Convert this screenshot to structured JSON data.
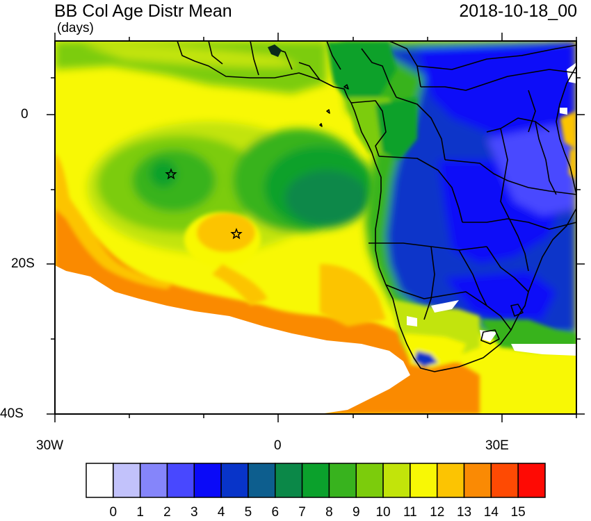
{
  "map": {
    "title": "BB Col Age Distr Mean",
    "units": "(days)",
    "timestamp": "2018-10-18_00",
    "region": "Southern Africa and South Atlantic",
    "lat_range": [
      -40,
      10
    ],
    "lon_range": [
      -30,
      40
    ],
    "x_axis": {
      "ticks": [
        {
          "value": -30,
          "label": "30W"
        },
        {
          "value": 0,
          "label": "0"
        },
        {
          "value": 30,
          "label": "30E"
        }
      ]
    },
    "y_axis": {
      "ticks": [
        {
          "value": 0,
          "label": "0"
        },
        {
          "value": -20,
          "label": "20S"
        },
        {
          "value": -40,
          "label": "40S"
        }
      ]
    },
    "markers": [
      {
        "type": "star",
        "lon": -14.5,
        "lat": -8
      },
      {
        "type": "star",
        "lon": -5.7,
        "lat": -16
      }
    ]
  },
  "colorbar": {
    "labels": [
      "0",
      "1",
      "2",
      "3",
      "4",
      "5",
      "6",
      "7",
      "8",
      "9",
      "10",
      "11",
      "12",
      "13",
      "14",
      "15"
    ],
    "colors": [
      "#ffffff",
      "#c2c2fb",
      "#8585fa",
      "#4848ff",
      "#0a0af8",
      "#0834c9",
      "#0d5e8e",
      "#0b8848",
      "#0ba12c",
      "#38b31e",
      "#7ccc0c",
      "#c2e40a",
      "#f8f805",
      "#fcc402",
      "#fa8a04",
      "#fe4a03",
      "#fe0a04"
    ]
  }
}
